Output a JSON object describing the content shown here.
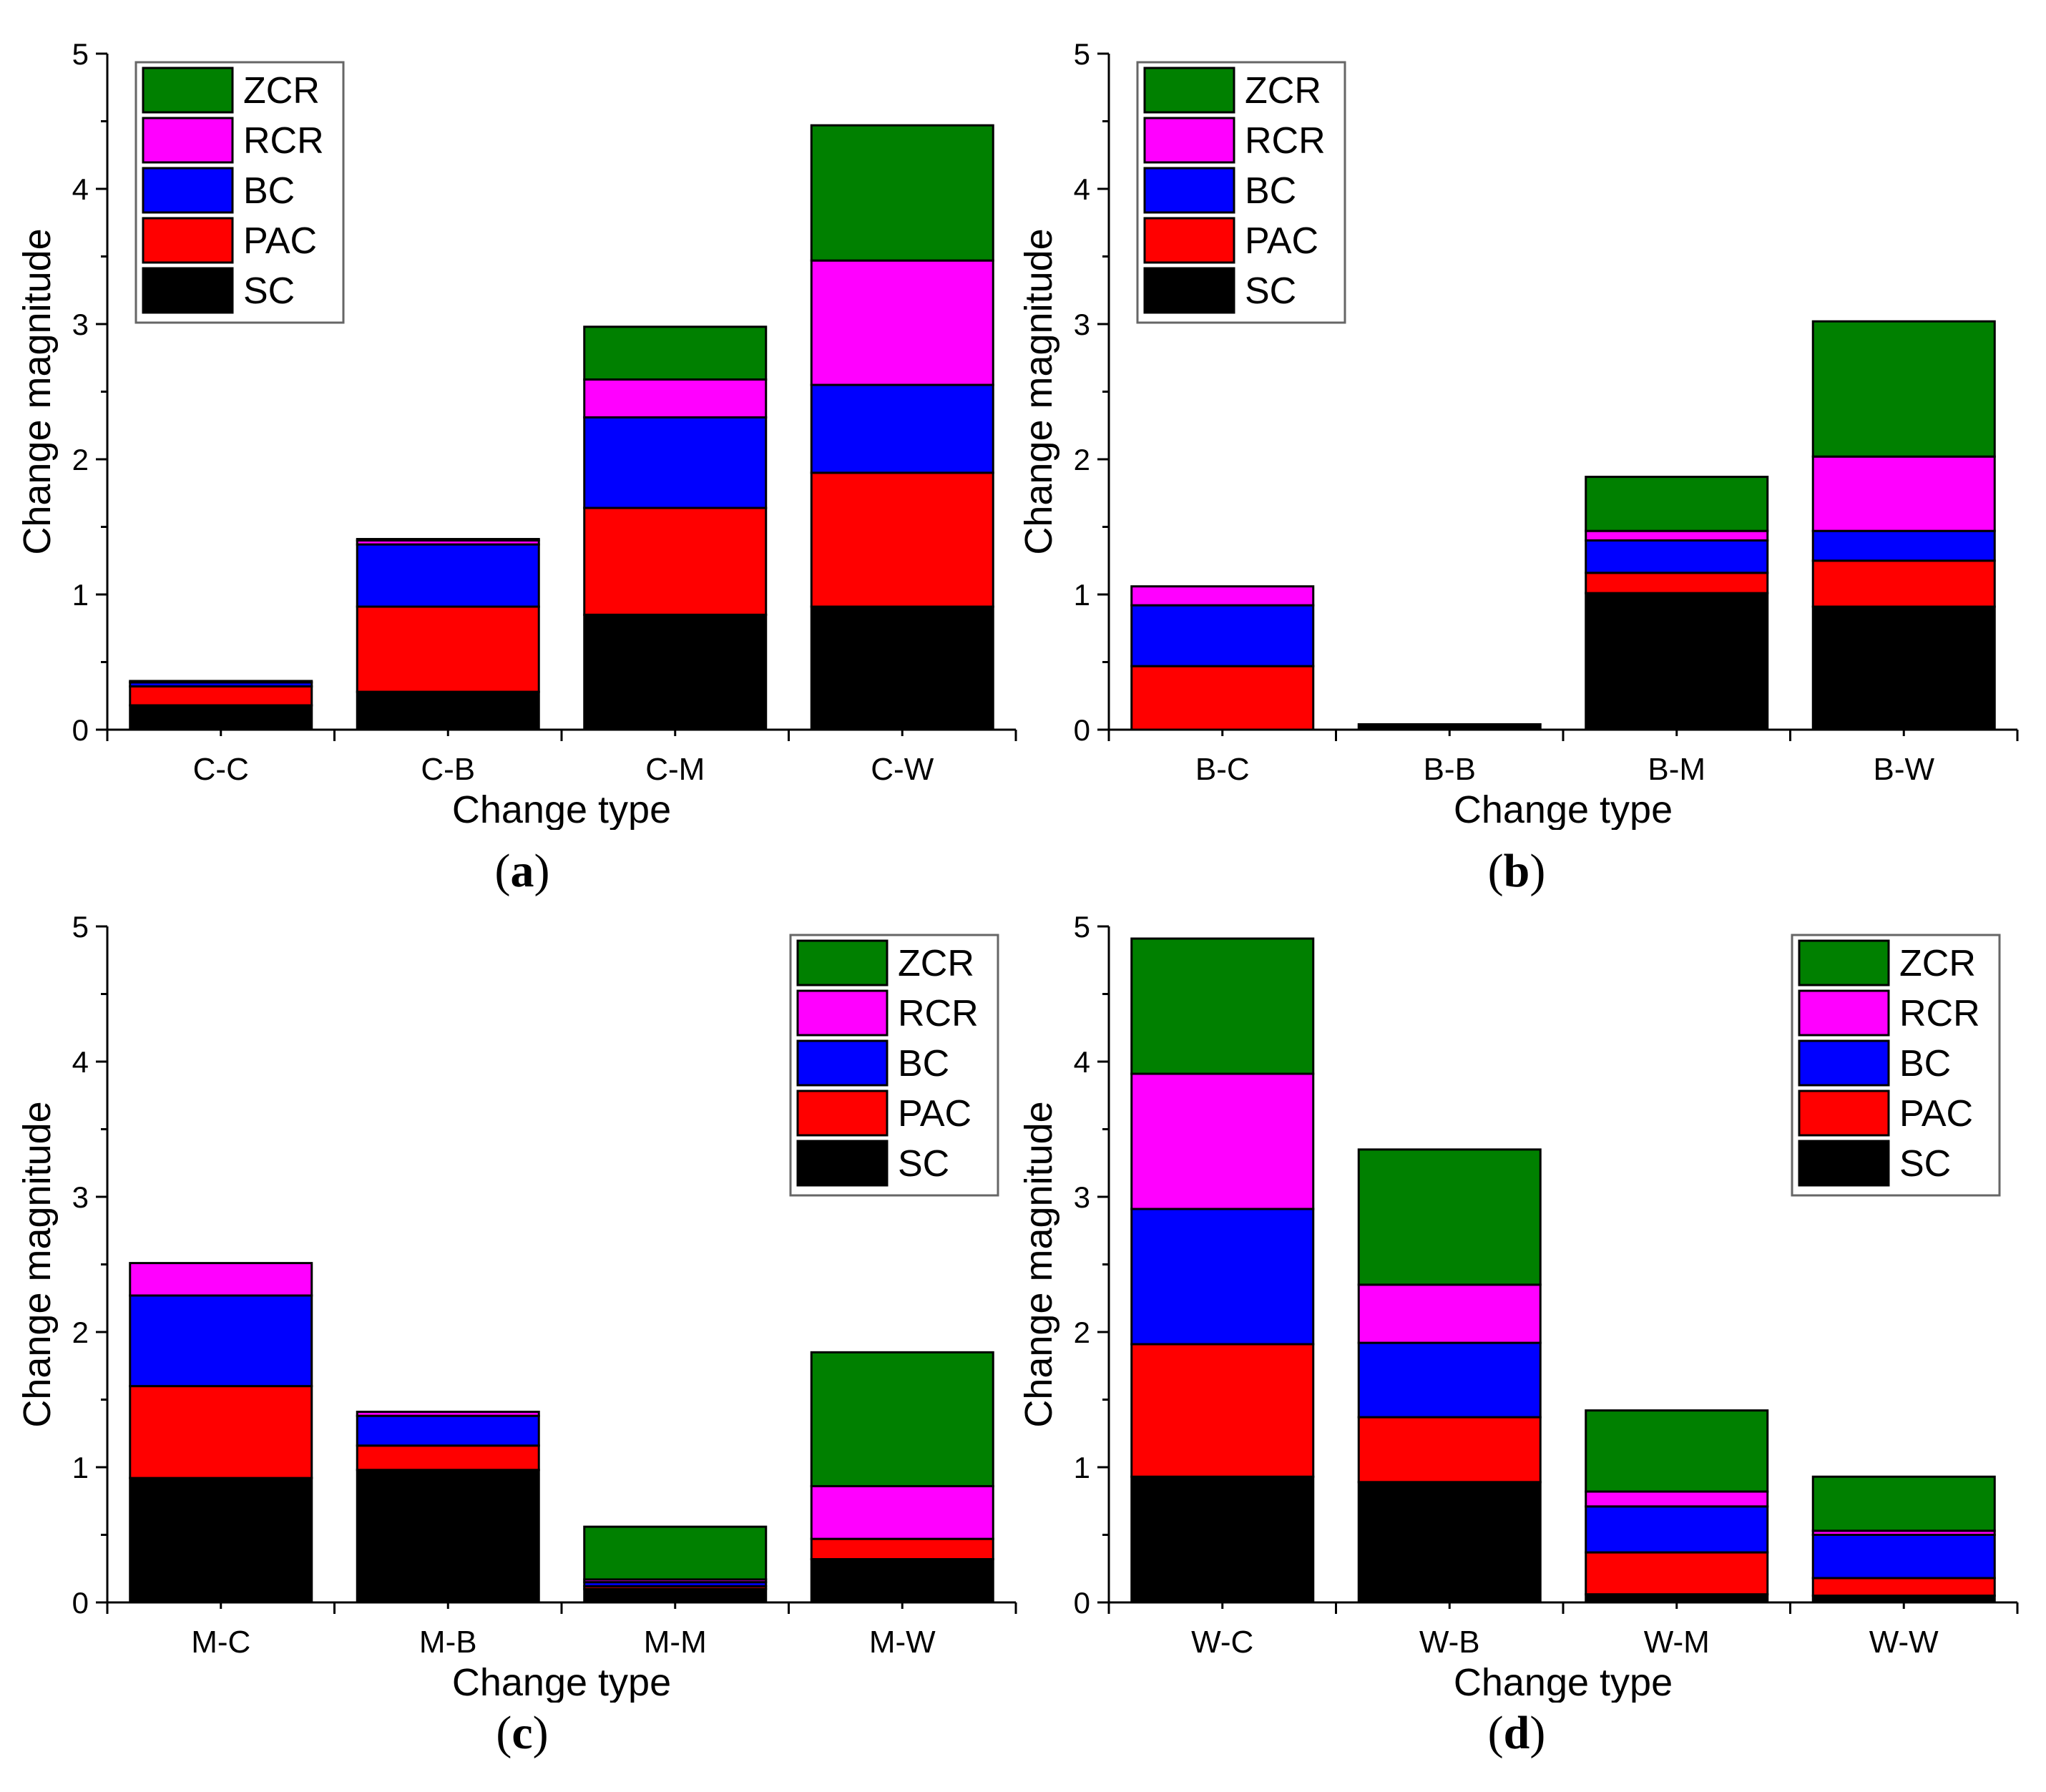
{
  "figure": {
    "series_names": [
      "SC",
      "PAC",
      "BC",
      "RCR",
      "ZCR"
    ],
    "series_colors": {
      "SC": "#000000",
      "PAC": "#ff0000",
      "BC": "#0000ff",
      "RCR": "#ff00ff",
      "ZCR": "#008000"
    }
  },
  "chart_data": [
    {
      "panel_label": "a",
      "type": "bar",
      "stacked": true,
      "xlabel": "Change type",
      "ylabel": "Change magnitude",
      "ylim": [
        0,
        5
      ],
      "yticks": [
        "0",
        "1",
        "2",
        "3",
        "4",
        "5"
      ],
      "legend_position": "top-left",
      "categories": [
        "C-C",
        "C-B",
        "C-M",
        "C-W"
      ],
      "series": [
        {
          "name": "SC",
          "values": [
            0.18,
            0.28,
            0.85,
            0.91
          ]
        },
        {
          "name": "PAC",
          "values": [
            0.14,
            0.63,
            0.79,
            0.99
          ]
        },
        {
          "name": "BC",
          "values": [
            0.03,
            0.46,
            0.67,
            0.65
          ]
        },
        {
          "name": "RCR",
          "values": [
            0.01,
            0.03,
            0.28,
            0.92
          ]
        },
        {
          "name": "ZCR",
          "values": [
            0.0,
            0.01,
            0.39,
            1.0
          ]
        }
      ]
    },
    {
      "panel_label": "b",
      "type": "bar",
      "stacked": true,
      "xlabel": "Change type",
      "ylabel": "Change magnitude",
      "ylim": [
        0,
        5
      ],
      "yticks": [
        "0",
        "1",
        "2",
        "3",
        "4",
        "5"
      ],
      "legend_position": "top-left",
      "categories": [
        "B-C",
        "B-B",
        "B-M",
        "B-W"
      ],
      "series": [
        {
          "name": "SC",
          "values": [
            0.0,
            0.04,
            1.01,
            0.91
          ]
        },
        {
          "name": "PAC",
          "values": [
            0.47,
            0.0,
            0.15,
            0.34
          ]
        },
        {
          "name": "BC",
          "values": [
            0.45,
            0.0,
            0.24,
            0.22
          ]
        },
        {
          "name": "RCR",
          "values": [
            0.14,
            0.0,
            0.07,
            0.55
          ]
        },
        {
          "name": "ZCR",
          "values": [
            0.0,
            0.0,
            0.4,
            1.0
          ]
        }
      ]
    },
    {
      "panel_label": "c",
      "type": "bar",
      "stacked": true,
      "xlabel": "Change type",
      "ylabel": "Change magnitude",
      "ylim": [
        0,
        5
      ],
      "yticks": [
        "0",
        "1",
        "2",
        "3",
        "4",
        "5"
      ],
      "legend_position": "top-right",
      "categories": [
        "M-C",
        "M-B",
        "M-M",
        "M-W"
      ],
      "series": [
        {
          "name": "SC",
          "values": [
            0.92,
            0.98,
            0.1,
            0.32
          ]
        },
        {
          "name": "PAC",
          "values": [
            0.68,
            0.18,
            0.02,
            0.15
          ]
        },
        {
          "name": "BC",
          "values": [
            0.67,
            0.22,
            0.03,
            0.0
          ]
        },
        {
          "name": "RCR",
          "values": [
            0.24,
            0.03,
            0.02,
            0.39
          ]
        },
        {
          "name": "ZCR",
          "values": [
            0.0,
            0.0,
            0.39,
            0.99
          ]
        }
      ]
    },
    {
      "panel_label": "d",
      "type": "bar",
      "stacked": true,
      "xlabel": "Change type",
      "ylabel": "Change magnitude",
      "ylim": [
        0,
        5
      ],
      "yticks": [
        "0",
        "1",
        "2",
        "3",
        "4",
        "5"
      ],
      "legend_position": "top-right",
      "categories": [
        "W-C",
        "W-B",
        "W-M",
        "W-W"
      ],
      "series": [
        {
          "name": "SC",
          "values": [
            0.93,
            0.89,
            0.06,
            0.05
          ]
        },
        {
          "name": "PAC",
          "values": [
            0.98,
            0.48,
            0.31,
            0.13
          ]
        },
        {
          "name": "BC",
          "values": [
            1.0,
            0.55,
            0.34,
            0.32
          ]
        },
        {
          "name": "RCR",
          "values": [
            1.0,
            0.43,
            0.11,
            0.03
          ]
        },
        {
          "name": "ZCR",
          "values": [
            1.0,
            1.0,
            0.6,
            0.4
          ]
        }
      ]
    }
  ]
}
